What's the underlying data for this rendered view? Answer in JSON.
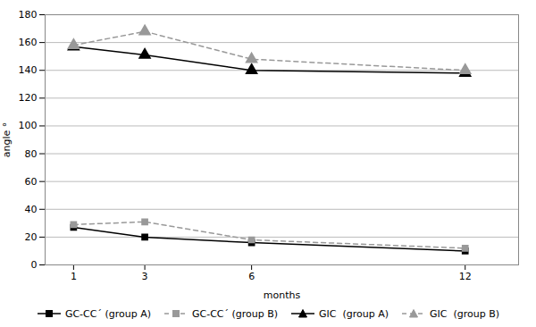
{
  "chart_data": {
    "type": "line",
    "x": [
      1,
      3,
      6,
      12
    ],
    "series": [
      {
        "name": "GC-CC´ (group A)",
        "color": "#000000",
        "values": [
          27,
          20,
          16,
          10
        ],
        "marker": "square",
        "line_style": "solid"
      },
      {
        "name": "GC-CC´ (group B)",
        "color": "#999999",
        "values": [
          29,
          31,
          18,
          12
        ],
        "marker": "square",
        "line_style": "dashed"
      },
      {
        "name": "GIC  (group A)",
        "color": "#000000",
        "values": [
          157,
          151,
          140,
          138
        ],
        "marker": "triangle",
        "line_style": "solid"
      },
      {
        "name": "GIC  (group B)",
        "color": "#999999",
        "values": [
          158,
          168,
          148,
          140
        ],
        "marker": "triangle",
        "line_style": "dashed"
      }
    ],
    "xlabel": "months",
    "ylabel": "angle °",
    "xlim": [
      0.2,
      13.5
    ],
    "xticks": [
      1,
      3,
      6,
      12
    ],
    "ylim": [
      0,
      180
    ],
    "yticks": [
      0,
      20,
      40,
      60,
      80,
      100,
      120,
      140,
      160,
      180
    ],
    "grid": "y",
    "legend": "bottom"
  }
}
